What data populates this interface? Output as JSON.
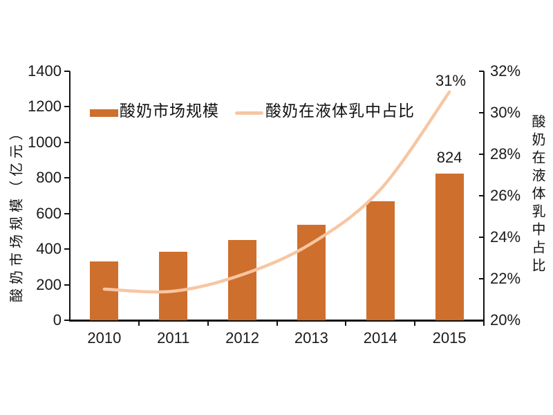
{
  "chart_data": {
    "type": "bar",
    "subtype": "combo-bar-line-dual-axis",
    "categories": [
      "2010",
      "2011",
      "2012",
      "2013",
      "2014",
      "2015"
    ],
    "series": [
      {
        "name": "酸奶市场规模",
        "type": "bar",
        "axis": "left",
        "values": [
          330,
          386,
          453,
          535,
          669,
          824
        ],
        "color": "#CE6F2D"
      },
      {
        "name": "酸奶在液体乳中占比",
        "type": "line",
        "axis": "right",
        "values": [
          21.5,
          21.4,
          22.2,
          23.7,
          26.3,
          31.0
        ],
        "color": "#F7C6A2"
      }
    ],
    "title": "",
    "xlabel": "",
    "left_axis": {
      "title": "酸奶市场规模（亿元）",
      "min": 0,
      "max": 1400,
      "step": 200,
      "tick_labels": [
        "0",
        "200",
        "400",
        "600",
        "800",
        "1000",
        "1200",
        "1400"
      ]
    },
    "right_axis": {
      "title": "酸奶在液体乳中占比",
      "min": 20,
      "max": 32,
      "step": 2,
      "tick_labels": [
        "20%",
        "22%",
        "24%",
        "26%",
        "28%",
        "30%",
        "32%"
      ]
    },
    "annotations": [
      {
        "text": "824",
        "series": "bar",
        "category": "2015"
      },
      {
        "text": "31%",
        "series": "line",
        "category": "2015"
      }
    ],
    "legend": {
      "position": "top-inside",
      "items": [
        {
          "label": "酸奶市场规模",
          "swatch": "bar",
          "color": "#CE6F2D"
        },
        {
          "label": "酸奶在液体乳中占比",
          "swatch": "line",
          "color": "#F7C6A2"
        }
      ]
    },
    "grid": false,
    "background": "#FFFFFF"
  }
}
